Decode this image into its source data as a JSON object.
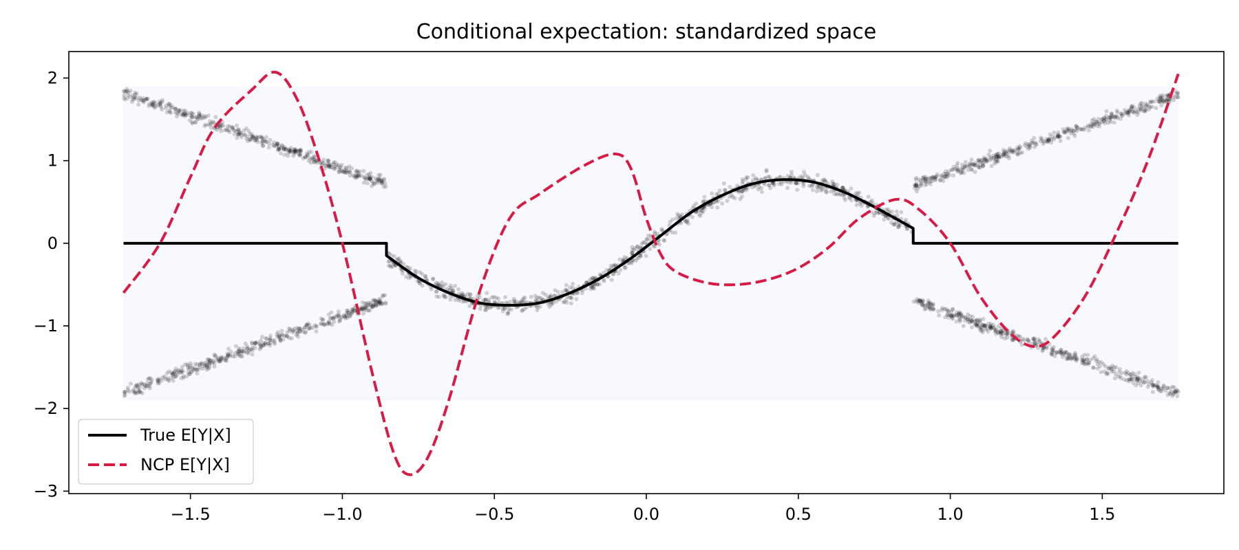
{
  "chart_data": {
    "type": "line",
    "title": "Conditional expectation: standardized space",
    "xlabel": "",
    "ylabel": "",
    "xlim": [
      -1.9,
      1.9
    ],
    "ylim": [
      -3.03,
      2.32
    ],
    "x_ticks": [
      -1.5,
      -1.0,
      -0.5,
      0.0,
      0.5,
      1.0,
      1.5
    ],
    "x_tick_labels": [
      "−1.5",
      "−1.0",
      "−0.5",
      "0.0",
      "0.5",
      "1.0",
      "1.5"
    ],
    "y_ticks": [
      -3,
      -2,
      -1,
      0,
      1,
      2
    ],
    "y_tick_labels": [
      "−3",
      "−2",
      "−1",
      "0",
      "1",
      "2"
    ],
    "grid": false,
    "legend_position": "lower-left",
    "shaded_region": {
      "x": [
        -1.72,
        1.75
      ],
      "y": [
        -1.9,
        1.9
      ],
      "color": "#f7f9fe"
    },
    "colors": {
      "true": "#000000",
      "ncp": "#d81b45",
      "scatter": "#000000"
    },
    "series": [
      {
        "name": "True E[Y|X]",
        "style": "solid",
        "x": [
          -1.72,
          -0.855,
          -0.855,
          -0.75,
          -0.65,
          -0.55,
          -0.45,
          -0.35,
          -0.25,
          -0.15,
          -0.05,
          0.05,
          0.15,
          0.25,
          0.35,
          0.45,
          0.55,
          0.65,
          0.75,
          0.878,
          0.878,
          1.75
        ],
        "y": [
          0.0,
          0.0,
          -0.15,
          -0.42,
          -0.6,
          -0.72,
          -0.75,
          -0.72,
          -0.6,
          -0.42,
          -0.18,
          0.1,
          0.38,
          0.58,
          0.72,
          0.77,
          0.74,
          0.62,
          0.44,
          0.18,
          0.0,
          0.0
        ]
      },
      {
        "name": "NCP E[Y|X]",
        "style": "dashed",
        "x": [
          -1.72,
          -1.6,
          -1.5,
          -1.42,
          -1.3,
          -1.22,
          -1.15,
          -1.08,
          -1.0,
          -0.9,
          -0.83,
          -0.78,
          -0.72,
          -0.65,
          -0.55,
          -0.45,
          -0.35,
          -0.2,
          -0.1,
          -0.05,
          0.0,
          0.05,
          0.1,
          0.2,
          0.3,
          0.4,
          0.5,
          0.6,
          0.7,
          0.82,
          0.9,
          1.0,
          1.1,
          1.2,
          1.28,
          1.35,
          1.45,
          1.55,
          1.65,
          1.75
        ],
        "y": [
          -0.6,
          0.0,
          0.8,
          1.4,
          1.85,
          2.07,
          1.75,
          1.05,
          0.0,
          -1.6,
          -2.55,
          -2.8,
          -2.6,
          -1.9,
          -0.6,
          0.3,
          0.6,
          0.95,
          1.08,
          0.9,
          0.3,
          -0.15,
          -0.35,
          -0.48,
          -0.5,
          -0.44,
          -0.3,
          -0.05,
          0.3,
          0.53,
          0.4,
          0.0,
          -0.65,
          -1.1,
          -1.25,
          -1.1,
          -0.6,
          0.15,
          1.0,
          2.05
        ]
      }
    ],
    "scatter_bands": [
      {
        "x": [
          -1.72,
          -0.855
        ],
        "y": [
          1.82,
          0.72
        ]
      },
      {
        "x": [
          -1.72,
          -0.855
        ],
        "y": [
          -1.82,
          -0.68
        ]
      },
      {
        "x": [
          0.88,
          1.75
        ],
        "y": [
          0.7,
          1.8
        ]
      },
      {
        "x": [
          0.88,
          1.75
        ],
        "y": [
          -0.7,
          -1.82
        ]
      }
    ]
  },
  "legend": {
    "items": [
      {
        "label": "True E[Y|X]"
      },
      {
        "label": "NCP E[Y|X]"
      }
    ]
  }
}
